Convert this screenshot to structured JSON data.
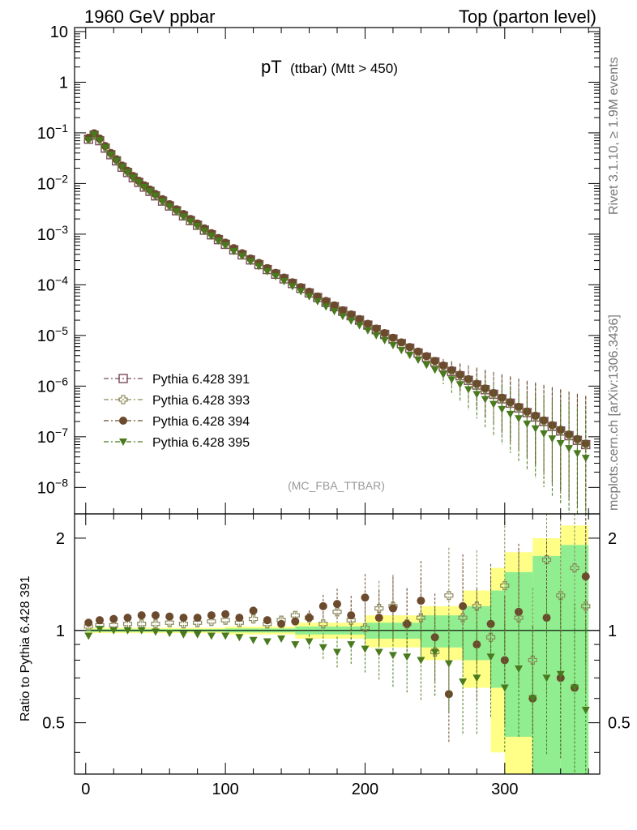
{
  "header": {
    "left": "1960 GeV ppbar",
    "right": "Top (parton level)"
  },
  "side_labels": {
    "rivet": "Rivet 3.1.10, ≥ 1.9M events",
    "mcplots": "mcplots.cern.ch [arXiv:1306.3436]"
  },
  "chart_data": [
    {
      "type": "scatter",
      "panel": "main",
      "title_main": "pT",
      "title_sub": "(ttbar) (Mtt > 450)",
      "analysis_tag": "(MC_FBA_TTBAR)",
      "xlabel": "",
      "ylabel": "",
      "xlim": [
        -8,
        368
      ],
      "ylim": [
        3e-09,
        12
      ],
      "yscale": "log",
      "y_tick_labels": [
        "10",
        "1",
        "10^-1",
        "10^-2",
        "10^-3",
        "10^-4",
        "10^-5",
        "10^-6",
        "10^-7",
        "10^-8"
      ],
      "legend_position": "bottom-left",
      "series": [
        {
          "name": "Pythia 6.428 391",
          "marker": "open-square",
          "color": "#7a4a5a",
          "x": [
            2,
            6,
            10,
            14,
            18,
            22,
            26,
            30,
            34,
            38,
            42,
            46,
            50,
            55,
            60,
            65,
            70,
            75,
            80,
            85,
            90,
            95,
            100,
            106,
            112,
            118,
            124,
            130,
            136,
            142,
            148,
            154,
            160,
            166,
            172,
            178,
            184,
            190,
            196,
            202,
            208,
            214,
            220,
            226,
            232,
            238,
            244,
            250,
            256,
            262,
            268,
            274,
            280,
            286,
            292,
            298,
            304,
            310,
            316,
            322,
            328,
            334,
            340,
            346,
            352,
            358
          ],
          "y": [
            0.075,
            0.09,
            0.07,
            0.05,
            0.037,
            0.028,
            0.021,
            0.0165,
            0.013,
            0.0105,
            0.0085,
            0.007,
            0.0057,
            0.0045,
            0.0036,
            0.0029,
            0.0023,
            0.00185,
            0.0015,
            0.0012,
            0.00097,
            0.00078,
            0.00063,
            0.00049,
            0.00039,
            0.00031,
            0.00025,
            0.0002,
            0.000162,
            0.000131,
            0.000106,
            8.5e-05,
            6.9e-05,
            5.6e-05,
            4.5e-05,
            3.7e-05,
            3e-05,
            2.45e-05,
            2e-05,
            1.6e-05,
            1.3e-05,
            1.05e-05,
            8.5e-06,
            6.9e-06,
            5.6e-06,
            4.5e-06,
            3.7e-06,
            3e-06,
            2.4e-06,
            1.95e-06,
            1.6e-06,
            1.3e-06,
            1.05e-06,
            8.5e-07,
            6.9e-07,
            5.6e-07,
            4.6e-07,
            3.7e-07,
            3e-07,
            2.45e-07,
            2e-07,
            1.6e-07,
            1.3e-07,
            1.05e-07,
            8.5e-08,
            7e-08
          ]
        },
        {
          "name": "Pythia 6.428 393",
          "marker": "open-cross",
          "color": "#8a8a5a",
          "x": [
            2,
            6,
            10,
            14,
            18,
            22,
            26,
            30,
            34,
            38,
            42,
            46,
            50,
            55,
            60,
            65,
            70,
            75,
            80,
            85,
            90,
            95,
            100,
            106,
            112,
            118,
            124,
            130,
            136,
            142,
            148,
            154,
            160,
            166,
            172,
            178,
            184,
            190,
            196,
            202,
            208,
            214,
            220,
            226,
            232,
            238,
            244,
            250,
            256,
            262,
            268,
            274,
            280,
            286,
            292,
            298,
            304,
            310,
            316,
            322,
            328,
            334,
            340,
            346,
            352,
            358
          ],
          "y": [
            0.078,
            0.095,
            0.075,
            0.053,
            0.039,
            0.0295,
            0.022,
            0.0173,
            0.0137,
            0.011,
            0.0089,
            0.0073,
            0.006,
            0.0047,
            0.0038,
            0.003,
            0.0024,
            0.00193,
            0.00157,
            0.00126,
            0.00101,
            0.00081,
            0.00066,
            0.00051,
            0.0004,
            0.00032,
            0.00026,
            0.000207,
            0.000166,
            0.000134,
            0.000108,
            8.7e-05,
            7e-05,
            5.7e-05,
            4.6e-05,
            3.8e-05,
            3.05e-05,
            2.5e-05,
            2.04e-05,
            1.63e-05,
            1.32e-05,
            1.07e-05,
            8.7e-06,
            7e-06,
            5.7e-06,
            4.6e-06,
            3.75e-06,
            3.05e-06,
            2.45e-06,
            2e-06,
            1.62e-06,
            1.32e-06,
            1.07e-06,
            8.7e-07,
            7e-07,
            5.7e-07,
            4.65e-07,
            3.75e-07,
            3.05e-07,
            2.5e-07,
            2.02e-07,
            1.63e-07,
            1.32e-07,
            1.07e-07,
            8.7e-08,
            7.1e-08
          ]
        },
        {
          "name": "Pythia 6.428 394",
          "marker": "filled-circle",
          "color": "#6b4a2e",
          "x": [
            2,
            6,
            10,
            14,
            18,
            22,
            26,
            30,
            34,
            38,
            42,
            46,
            50,
            55,
            60,
            65,
            70,
            75,
            80,
            85,
            90,
            95,
            100,
            106,
            112,
            118,
            124,
            130,
            136,
            142,
            148,
            154,
            160,
            166,
            172,
            178,
            184,
            190,
            196,
            202,
            208,
            214,
            220,
            226,
            232,
            238,
            244,
            250,
            256,
            262,
            268,
            274,
            280,
            286,
            292,
            298,
            304,
            310,
            316,
            322,
            328,
            334,
            340,
            346,
            352,
            358
          ],
          "y": [
            0.08,
            0.098,
            0.077,
            0.055,
            0.04,
            0.03,
            0.0225,
            0.0178,
            0.014,
            0.0113,
            0.0092,
            0.0076,
            0.0062,
            0.0049,
            0.0039,
            0.0031,
            0.0025,
            0.002,
            0.00162,
            0.0013,
            0.00105,
            0.00084,
            0.00068,
            0.00053,
            0.00042,
            0.00033,
            0.00027,
            0.000214,
            0.000172,
            0.000139,
            0.000112,
            9e-05,
            7.3e-05,
            5.9e-05,
            4.8e-05,
            3.9e-05,
            3.15e-05,
            2.6e-05,
            2.1e-05,
            1.7e-05,
            1.37e-05,
            1.11e-05,
            9e-06,
            7.3e-06,
            5.9e-06,
            4.8e-06,
            3.9e-06,
            3.15e-06,
            2.55e-06,
            2.07e-06,
            1.68e-06,
            1.37e-06,
            1.11e-06,
            9e-07,
            7.3e-07,
            5.9e-07,
            4.8e-07,
            3.9e-07,
            3.15e-07,
            2.6e-07,
            2.1e-07,
            1.7e-07,
            1.37e-07,
            1.11e-07,
            9e-08,
            7.3e-08
          ]
        },
        {
          "name": "Pythia 6.428 395",
          "marker": "filled-triangle-down",
          "color": "#4a7a1e",
          "x": [
            2,
            6,
            10,
            14,
            18,
            22,
            26,
            30,
            34,
            38,
            42,
            46,
            50,
            55,
            60,
            65,
            70,
            75,
            80,
            85,
            90,
            95,
            100,
            106,
            112,
            118,
            124,
            130,
            136,
            142,
            148,
            154,
            160,
            166,
            172,
            178,
            184,
            190,
            196,
            202,
            208,
            214,
            220,
            226,
            232,
            238,
            244,
            250,
            256,
            262,
            268,
            274,
            280,
            286,
            292,
            298,
            304,
            310,
            316,
            322,
            328,
            334,
            340,
            346,
            352,
            358
          ],
          "y": [
            0.072,
            0.092,
            0.071,
            0.051,
            0.037,
            0.028,
            0.021,
            0.0166,
            0.013,
            0.0105,
            0.0085,
            0.007,
            0.0057,
            0.0044,
            0.0035,
            0.0028,
            0.0022,
            0.00178,
            0.00144,
            0.00115,
            0.00092,
            0.00074,
            0.0006,
            0.00046,
            0.00037,
            0.00029,
            0.000232,
            0.000184,
            0.000147,
            0.000117,
            9.3e-05,
            7.4e-05,
            5.9e-05,
            4.7e-05,
            3.7e-05,
            3e-05,
            2.4e-05,
            1.95e-05,
            1.57e-05,
            1.25e-05,
            1e-05,
            8e-06,
            6.4e-06,
            5.1e-06,
            4.1e-06,
            3.3e-06,
            2.6e-06,
            2.1e-06,
            1.7e-06,
            1.35e-06,
            1.08e-06,
            8.6e-07,
            6.9e-07,
            5.5e-07,
            4.4e-07,
            3.5e-07,
            2.8e-07,
            2.3e-07,
            1.8e-07,
            1.45e-07,
            1.15e-07,
            9.2e-08,
            7.4e-08,
            5.9e-08,
            4.7e-08,
            3.8e-08
          ]
        }
      ]
    },
    {
      "type": "scatter",
      "panel": "ratio",
      "ylabel": "Ratio to Pythia 6.428 391",
      "xlim": [
        -8,
        368
      ],
      "ylim": [
        0.34,
        2.4
      ],
      "yscale": "log",
      "y_tick_labels": [
        "0.5",
        "1",
        "2"
      ],
      "x_tick_labels": [
        "0",
        "100",
        "200",
        "300"
      ],
      "band_yellow": {
        "x_edges": [
          0,
          100,
          150,
          200,
          240,
          270,
          290,
          300,
          320,
          340,
          360
        ],
        "half_width": [
          0.02,
          0.03,
          0.06,
          0.12,
          0.2,
          0.35,
          0.6,
          0.8,
          1.0,
          1.2
        ]
      },
      "band_green": {
        "x_edges": [
          0,
          100,
          150,
          200,
          240,
          270,
          290,
          300,
          320,
          340,
          360
        ],
        "half_width": [
          0.01,
          0.015,
          0.03,
          0.06,
          0.12,
          0.2,
          0.35,
          0.55,
          0.75,
          0.9
        ]
      },
      "series": [
        {
          "name": "Pythia 6.428 393",
          "x": [
            2,
            10,
            20,
            30,
            40,
            50,
            60,
            70,
            80,
            90,
            100,
            110,
            120,
            130,
            140,
            150,
            160,
            170,
            180,
            190,
            200,
            210,
            220,
            230,
            240,
            250,
            260,
            270,
            280,
            290,
            300,
            310,
            320,
            330,
            340,
            350,
            358
          ],
          "y": [
            1.03,
            1.04,
            1.04,
            1.05,
            1.05,
            1.05,
            1.06,
            1.05,
            1.06,
            1.07,
            1.08,
            1.06,
            1.09,
            1.05,
            1.08,
            1.12,
            1.1,
            1.05,
            1.15,
            1.08,
            1.02,
            1.18,
            1.2,
            1.05,
            1.1,
            0.85,
            1.3,
            1.1,
            1.2,
            0.95,
            1.4,
            1.1,
            0.8,
            1.7,
            1.3,
            1.6,
            1.2
          ]
        },
        {
          "name": "Pythia 6.428 394",
          "x": [
            2,
            10,
            20,
            30,
            40,
            50,
            60,
            70,
            80,
            90,
            100,
            110,
            120,
            130,
            140,
            150,
            160,
            170,
            180,
            190,
            200,
            210,
            220,
            230,
            240,
            250,
            260,
            270,
            280,
            290,
            300,
            310,
            320,
            330,
            340,
            350,
            358
          ],
          "y": [
            1.06,
            1.08,
            1.09,
            1.1,
            1.12,
            1.12,
            1.11,
            1.1,
            1.1,
            1.12,
            1.13,
            1.1,
            1.16,
            1.08,
            1.05,
            1.07,
            1.1,
            1.2,
            1.22,
            1.12,
            1.28,
            1.1,
            1.18,
            1.05,
            1.25,
            0.95,
            0.62,
            1.2,
            0.9,
            1.05,
            0.8,
            1.15,
            0.6,
            1.1,
            0.7,
            0.65,
            1.5
          ]
        },
        {
          "name": "Pythia 6.428 395",
          "x": [
            2,
            10,
            20,
            30,
            40,
            50,
            60,
            70,
            80,
            90,
            100,
            110,
            120,
            130,
            140,
            150,
            160,
            170,
            180,
            190,
            200,
            210,
            220,
            230,
            240,
            250,
            260,
            270,
            280,
            290,
            300,
            310,
            320,
            330,
            340,
            350,
            358
          ],
          "y": [
            0.96,
            1.01,
            1.0,
            1.0,
            1.0,
            0.99,
            0.98,
            0.97,
            0.97,
            0.96,
            0.96,
            0.95,
            0.93,
            0.92,
            0.94,
            0.9,
            0.92,
            0.88,
            0.85,
            0.9,
            0.87,
            0.85,
            0.83,
            0.82,
            0.8,
            0.85,
            0.78,
            0.68,
            0.7,
            0.82,
            0.65,
            0.75,
            0.6,
            0.7,
            0.72,
            0.65,
            0.55
          ]
        }
      ]
    }
  ]
}
